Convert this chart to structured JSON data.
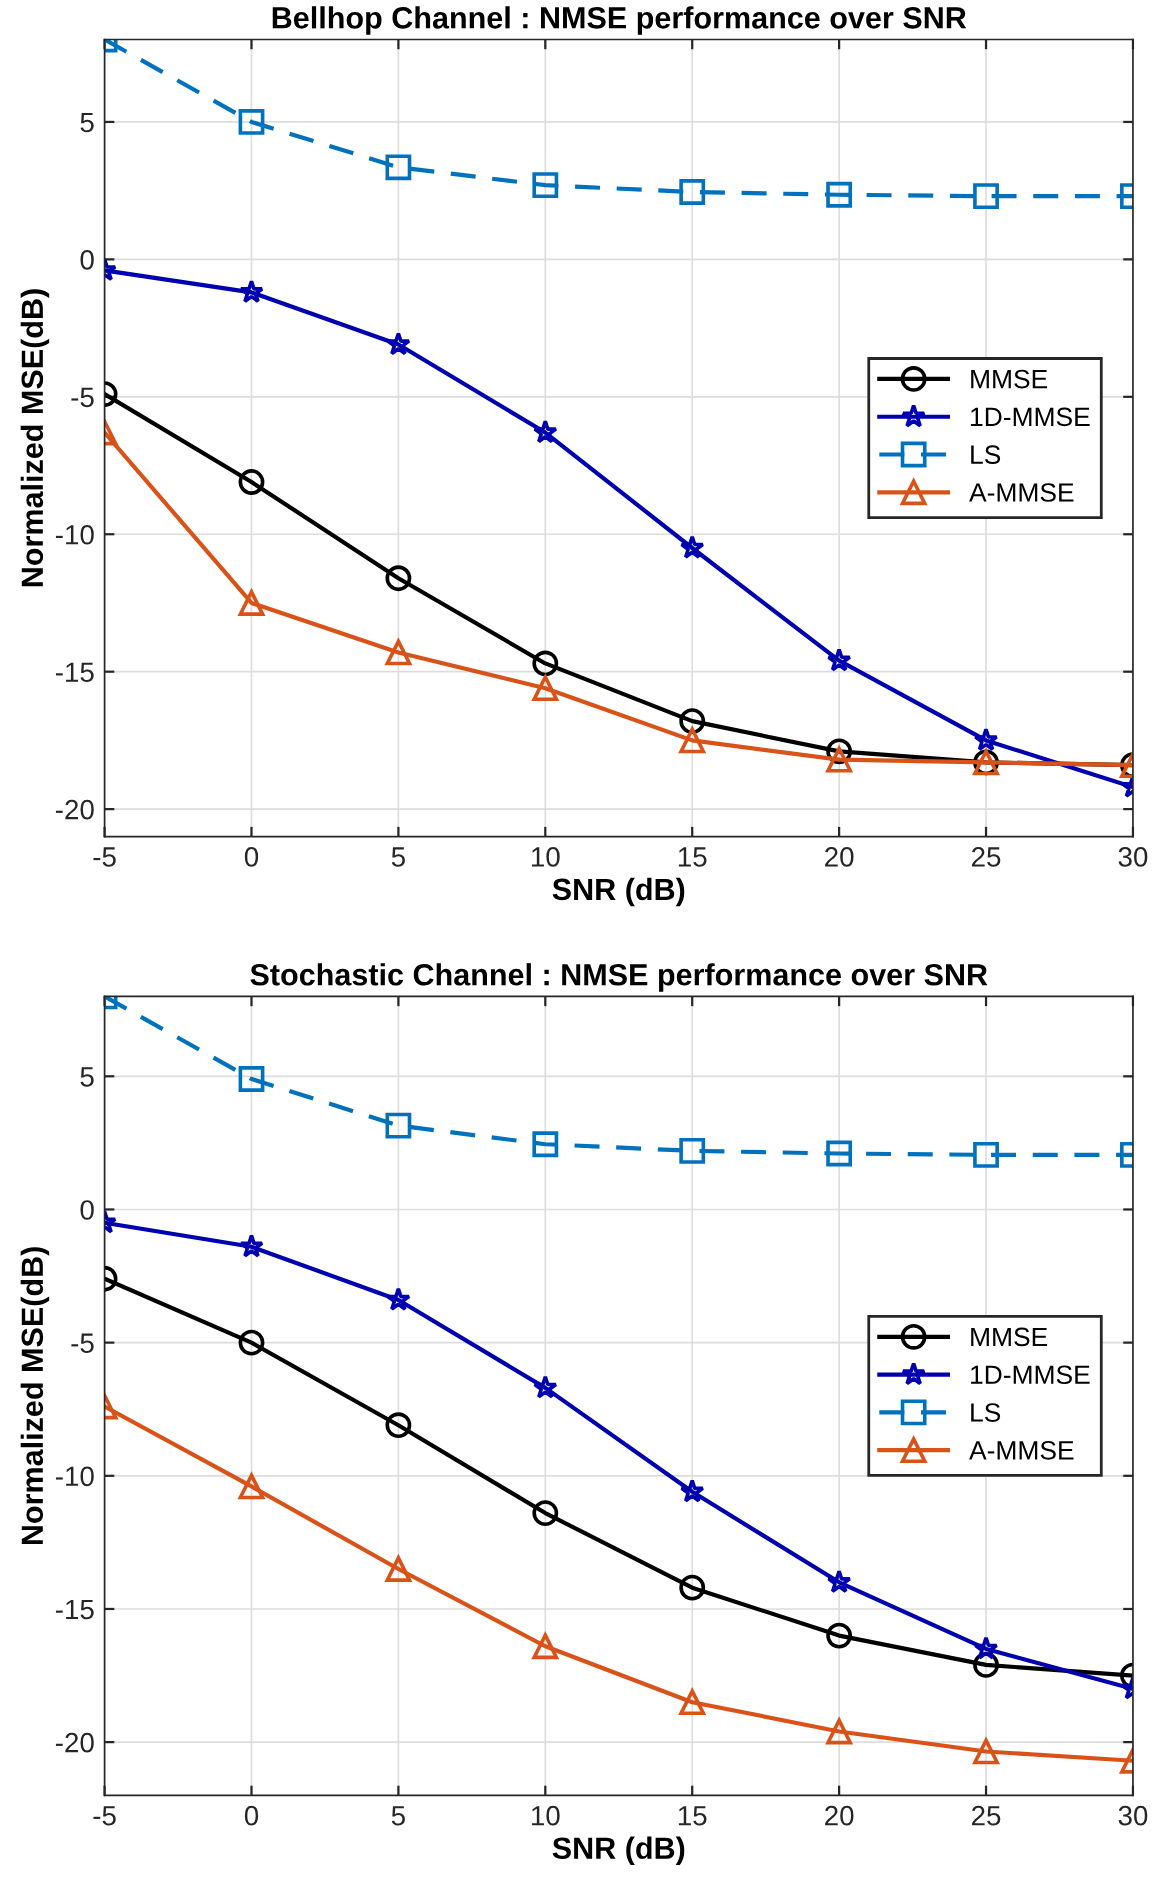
{
  "chart_data": [
    {
      "type": "line",
      "title": "Bellhop Channel : NMSE performance over SNR",
      "xlabel": "SNR (dB)",
      "ylabel": "Normalized MSE(dB)",
      "x": [
        -5,
        0,
        5,
        10,
        15,
        20,
        25,
        30
      ],
      "xlim": [
        -5,
        30
      ],
      "xticks": [
        -5,
        0,
        5,
        10,
        15,
        20,
        25,
        30
      ],
      "ylim": [
        -21,
        8
      ],
      "yticks": [
        -20,
        -15,
        -10,
        -5,
        0,
        5
      ],
      "grid": true,
      "legend": "right",
      "series": [
        {
          "name": "MMSE",
          "color": "#000000",
          "marker": "circle",
          "line_style": "solid",
          "values": [
            -4.9,
            -8.1,
            -11.6,
            -14.7,
            -16.8,
            -17.9,
            -18.3,
            -18.4
          ]
        },
        {
          "name": "1D-MMSE",
          "color": "#0000b0",
          "marker": "star",
          "line_style": "solid",
          "values": [
            -0.4,
            -1.2,
            -3.1,
            -6.3,
            -10.5,
            -14.6,
            -17.5,
            -19.2
          ]
        },
        {
          "name": "LS",
          "color": "#0072bd",
          "marker": "square",
          "line_style": "dashed",
          "values": [
            8,
            5,
            3.35,
            2.7,
            2.45,
            2.35,
            2.3,
            2.3
          ]
        },
        {
          "name": "A-MMSE",
          "color": "#d95319",
          "marker": "triangle",
          "line_style": "solid",
          "values": [
            -6.3,
            -12.5,
            -14.3,
            -15.6,
            -17.5,
            -18.2,
            -18.3,
            -18.4
          ]
        }
      ]
    },
    {
      "type": "line",
      "title": "Stochastic Channel : NMSE performance over SNR",
      "xlabel": "SNR (dB)",
      "ylabel": "Normalized MSE(dB)",
      "x": [
        -5,
        0,
        5,
        10,
        15,
        20,
        25,
        30
      ],
      "xlim": [
        -5,
        30
      ],
      "xticks": [
        -5,
        0,
        5,
        10,
        15,
        20,
        25,
        30
      ],
      "ylim": [
        -22,
        8
      ],
      "yticks": [
        -20,
        -15,
        -10,
        -5,
        0,
        5
      ],
      "grid": true,
      "legend": "right",
      "series": [
        {
          "name": "MMSE",
          "color": "#000000",
          "marker": "circle",
          "line_style": "solid",
          "values": [
            -2.6,
            -5.0,
            -8.1,
            -11.4,
            -14.2,
            -16.0,
            -17.1,
            -17.5
          ]
        },
        {
          "name": "1D-MMSE",
          "color": "#0000b0",
          "marker": "star",
          "line_style": "solid",
          "values": [
            -0.5,
            -1.4,
            -3.4,
            -6.7,
            -10.6,
            -14.0,
            -16.5,
            -18.0
          ]
        },
        {
          "name": "LS",
          "color": "#0072bd",
          "marker": "square",
          "line_style": "dashed",
          "values": [
            8,
            4.9,
            3.15,
            2.45,
            2.2,
            2.1,
            2.05,
            2.05
          ]
        },
        {
          "name": "A-MMSE",
          "color": "#d95319",
          "marker": "triangle",
          "line_style": "solid",
          "values": [
            -7.4,
            -10.4,
            -13.5,
            -16.4,
            -18.5,
            -19.6,
            -20.35,
            -20.7
          ]
        }
      ]
    }
  ]
}
